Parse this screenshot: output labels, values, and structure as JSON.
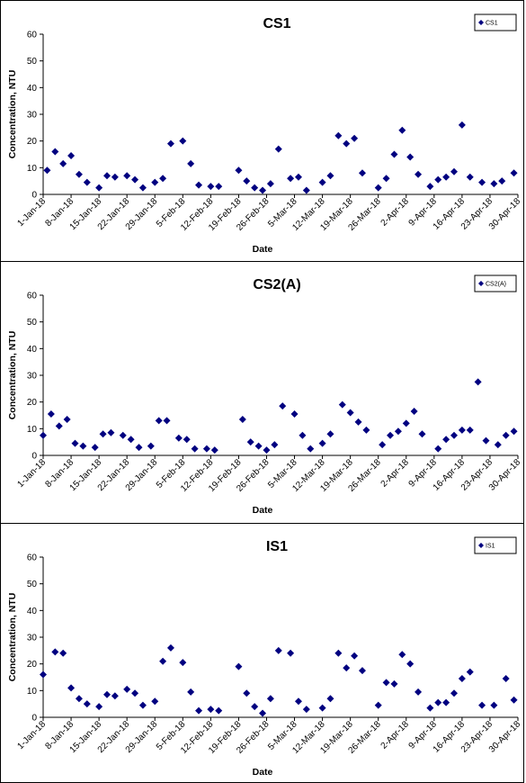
{
  "chart_data": [
    {
      "type": "scatter",
      "title": "CS1",
      "xlabel": "Date",
      "ylabel": "Concentration, NTU",
      "ylim": [
        0,
        60
      ],
      "yticks": [
        0,
        10,
        20,
        30,
        40,
        50,
        60
      ],
      "xlim": [
        "2018-01-01",
        "2018-04-30"
      ],
      "xtick_labels": [
        "1-Jan-18",
        "8-Jan-18",
        "15-Jan-18",
        "22-Jan-18",
        "29-Jan-18",
        "5-Feb-18",
        "12-Feb-18",
        "19-Feb-18",
        "26-Feb-18",
        "5-Mar-18",
        "12-Mar-18",
        "19-Mar-18",
        "26-Mar-18",
        "2-Apr-18",
        "9-Apr-18",
        "16-Apr-18",
        "23-Apr-18",
        "30-Apr-18"
      ],
      "grid": false,
      "legend": "top-right",
      "series": [
        {
          "name": "CS1",
          "color": "#000080",
          "points": [
            [
              "2018-01-02",
              9
            ],
            [
              "2018-01-04",
              16
            ],
            [
              "2018-01-06",
              11.5
            ],
            [
              "2018-01-08",
              14.5
            ],
            [
              "2018-01-10",
              7.5
            ],
            [
              "2018-01-12",
              4.5
            ],
            [
              "2018-01-15",
              2.5
            ],
            [
              "2018-01-17",
              7
            ],
            [
              "2018-01-19",
              6.5
            ],
            [
              "2018-01-22",
              7
            ],
            [
              "2018-01-24",
              5.5
            ],
            [
              "2018-01-26",
              2.5
            ],
            [
              "2018-01-29",
              4.5
            ],
            [
              "2018-01-31",
              6
            ],
            [
              "2018-02-02",
              19
            ],
            [
              "2018-02-05",
              20
            ],
            [
              "2018-02-07",
              11.5
            ],
            [
              "2018-02-09",
              3.5
            ],
            [
              "2018-02-12",
              3
            ],
            [
              "2018-02-14",
              3
            ],
            [
              "2018-02-19",
              9
            ],
            [
              "2018-02-21",
              5
            ],
            [
              "2018-02-23",
              2.5
            ],
            [
              "2018-02-25",
              1.5
            ],
            [
              "2018-02-27",
              4
            ],
            [
              "2018-03-01",
              17
            ],
            [
              "2018-03-04",
              6
            ],
            [
              "2018-03-06",
              6.5
            ],
            [
              "2018-03-08",
              1.5
            ],
            [
              "2018-03-12",
              4.5
            ],
            [
              "2018-03-14",
              7
            ],
            [
              "2018-03-16",
              22
            ],
            [
              "2018-03-18",
              19
            ],
            [
              "2018-03-20",
              21
            ],
            [
              "2018-03-22",
              8
            ],
            [
              "2018-03-26",
              2.5
            ],
            [
              "2018-03-28",
              6
            ],
            [
              "2018-03-30",
              15
            ],
            [
              "2018-04-01",
              24
            ],
            [
              "2018-04-03",
              14
            ],
            [
              "2018-04-05",
              7.5
            ],
            [
              "2018-04-08",
              3
            ],
            [
              "2018-04-10",
              5.5
            ],
            [
              "2018-04-12",
              6.5
            ],
            [
              "2018-04-14",
              8.5
            ],
            [
              "2018-04-16",
              26
            ],
            [
              "2018-04-18",
              6.5
            ],
            [
              "2018-04-21",
              4.5
            ],
            [
              "2018-04-24",
              4
            ],
            [
              "2018-04-26",
              5
            ],
            [
              "2018-04-29",
              8
            ]
          ]
        }
      ]
    },
    {
      "type": "scatter",
      "title": "CS2(A)",
      "xlabel": "Date",
      "ylabel": "Concentration, NTU",
      "ylim": [
        0,
        60
      ],
      "yticks": [
        0,
        10,
        20,
        30,
        40,
        50,
        60
      ],
      "xlim": [
        "2018-01-01",
        "2018-04-30"
      ],
      "xtick_labels": [
        "1-Jan-18",
        "8-Jan-18",
        "15-Jan-18",
        "22-Jan-18",
        "29-Jan-18",
        "5-Feb-18",
        "12-Feb-18",
        "19-Feb-18",
        "26-Feb-18",
        "5-Mar-18",
        "12-Mar-18",
        "19-Mar-18",
        "26-Mar-18",
        "2-Apr-18",
        "9-Apr-18",
        "16-Apr-18",
        "23-Apr-18",
        "30-Apr-18"
      ],
      "grid": false,
      "legend": "top-right",
      "series": [
        {
          "name": "CS2(A)",
          "color": "#000080",
          "points": [
            [
              "2018-01-01",
              7.5
            ],
            [
              "2018-01-03",
              15.5
            ],
            [
              "2018-01-05",
              11
            ],
            [
              "2018-01-07",
              13.5
            ],
            [
              "2018-01-09",
              4.5
            ],
            [
              "2018-01-11",
              3.5
            ],
            [
              "2018-01-14",
              3
            ],
            [
              "2018-01-16",
              8
            ],
            [
              "2018-01-18",
              8.5
            ],
            [
              "2018-01-21",
              7.5
            ],
            [
              "2018-01-23",
              6
            ],
            [
              "2018-01-25",
              3
            ],
            [
              "2018-01-28",
              3.5
            ],
            [
              "2018-01-30",
              13
            ],
            [
              "2018-02-01",
              13
            ],
            [
              "2018-02-04",
              6.5
            ],
            [
              "2018-02-06",
              6
            ],
            [
              "2018-02-08",
              2.5
            ],
            [
              "2018-02-11",
              2.5
            ],
            [
              "2018-02-13",
              2
            ],
            [
              "2018-02-20",
              13.5
            ],
            [
              "2018-02-22",
              5
            ],
            [
              "2018-02-24",
              3.5
            ],
            [
              "2018-02-26",
              2
            ],
            [
              "2018-02-28",
              4
            ],
            [
              "2018-03-02",
              18.5
            ],
            [
              "2018-03-05",
              15.5
            ],
            [
              "2018-03-07",
              7.5
            ],
            [
              "2018-03-09",
              2.5
            ],
            [
              "2018-03-12",
              4.5
            ],
            [
              "2018-03-14",
              8
            ],
            [
              "2018-03-17",
              19
            ],
            [
              "2018-03-19",
              16
            ],
            [
              "2018-03-21",
              12.5
            ],
            [
              "2018-03-23",
              9.5
            ],
            [
              "2018-03-27",
              4
            ],
            [
              "2018-03-29",
              7.5
            ],
            [
              "2018-03-31",
              9
            ],
            [
              "2018-04-02",
              12
            ],
            [
              "2018-04-04",
              16.5
            ],
            [
              "2018-04-06",
              8
            ],
            [
              "2018-04-10",
              2.5
            ],
            [
              "2018-04-12",
              6
            ],
            [
              "2018-04-14",
              7.5
            ],
            [
              "2018-04-16",
              9.5
            ],
            [
              "2018-04-18",
              9.5
            ],
            [
              "2018-04-20",
              27.5
            ],
            [
              "2018-04-22",
              5.5
            ],
            [
              "2018-04-25",
              4
            ],
            [
              "2018-04-27",
              7.5
            ],
            [
              "2018-04-29",
              9
            ]
          ]
        }
      ]
    },
    {
      "type": "scatter",
      "title": "IS1",
      "xlabel": "Date",
      "ylabel": "Concentration, NTU",
      "ylim": [
        0,
        60
      ],
      "yticks": [
        0,
        10,
        20,
        30,
        40,
        50,
        60
      ],
      "xlim": [
        "2018-01-01",
        "2018-04-30"
      ],
      "xtick_labels": [
        "1-Jan-18",
        "8-Jan-18",
        "15-Jan-18",
        "22-Jan-18",
        "29-Jan-18",
        "5-Feb-18",
        "12-Feb-18",
        "19-Feb-18",
        "26-Feb-18",
        "5-Mar-18",
        "12-Mar-18",
        "19-Mar-18",
        "26-Mar-18",
        "2-Apr-18",
        "9-Apr-18",
        "16-Apr-18",
        "23-Apr-18",
        "30-Apr-18"
      ],
      "grid": false,
      "legend": "top-right",
      "series": [
        {
          "name": "IS1",
          "color": "#000080",
          "points": [
            [
              "2018-01-01",
              16
            ],
            [
              "2018-01-04",
              24.5
            ],
            [
              "2018-01-06",
              24
            ],
            [
              "2018-01-08",
              11
            ],
            [
              "2018-01-10",
              7
            ],
            [
              "2018-01-12",
              5
            ],
            [
              "2018-01-15",
              4
            ],
            [
              "2018-01-17",
              8.5
            ],
            [
              "2018-01-19",
              8
            ],
            [
              "2018-01-22",
              10.5
            ],
            [
              "2018-01-24",
              9
            ],
            [
              "2018-01-26",
              4.5
            ],
            [
              "2018-01-29",
              6
            ],
            [
              "2018-01-31",
              21
            ],
            [
              "2018-02-02",
              26
            ],
            [
              "2018-02-05",
              20.5
            ],
            [
              "2018-02-07",
              9.5
            ],
            [
              "2018-02-09",
              2.5
            ],
            [
              "2018-02-12",
              3
            ],
            [
              "2018-02-14",
              2.5
            ],
            [
              "2018-02-19",
              19
            ],
            [
              "2018-02-21",
              9
            ],
            [
              "2018-02-23",
              4
            ],
            [
              "2018-02-25",
              1.5
            ],
            [
              "2018-02-27",
              7
            ],
            [
              "2018-03-01",
              25
            ],
            [
              "2018-03-04",
              24
            ],
            [
              "2018-03-06",
              6
            ],
            [
              "2018-03-08",
              3
            ],
            [
              "2018-03-12",
              3.5
            ],
            [
              "2018-03-14",
              7
            ],
            [
              "2018-03-16",
              24
            ],
            [
              "2018-03-18",
              18.5
            ],
            [
              "2018-03-20",
              23
            ],
            [
              "2018-03-22",
              17.5
            ],
            [
              "2018-03-26",
              4.5
            ],
            [
              "2018-03-28",
              13
            ],
            [
              "2018-03-30",
              12.5
            ],
            [
              "2018-04-01",
              23.5
            ],
            [
              "2018-04-03",
              20
            ],
            [
              "2018-04-05",
              9.5
            ],
            [
              "2018-04-08",
              3.5
            ],
            [
              "2018-04-10",
              5.5
            ],
            [
              "2018-04-12",
              5.5
            ],
            [
              "2018-04-14",
              9
            ],
            [
              "2018-04-16",
              14.5
            ],
            [
              "2018-04-18",
              17
            ],
            [
              "2018-04-21",
              4.5
            ],
            [
              "2018-04-24",
              4.5
            ],
            [
              "2018-04-27",
              14.5
            ],
            [
              "2018-04-29",
              6.5
            ]
          ]
        }
      ]
    }
  ]
}
